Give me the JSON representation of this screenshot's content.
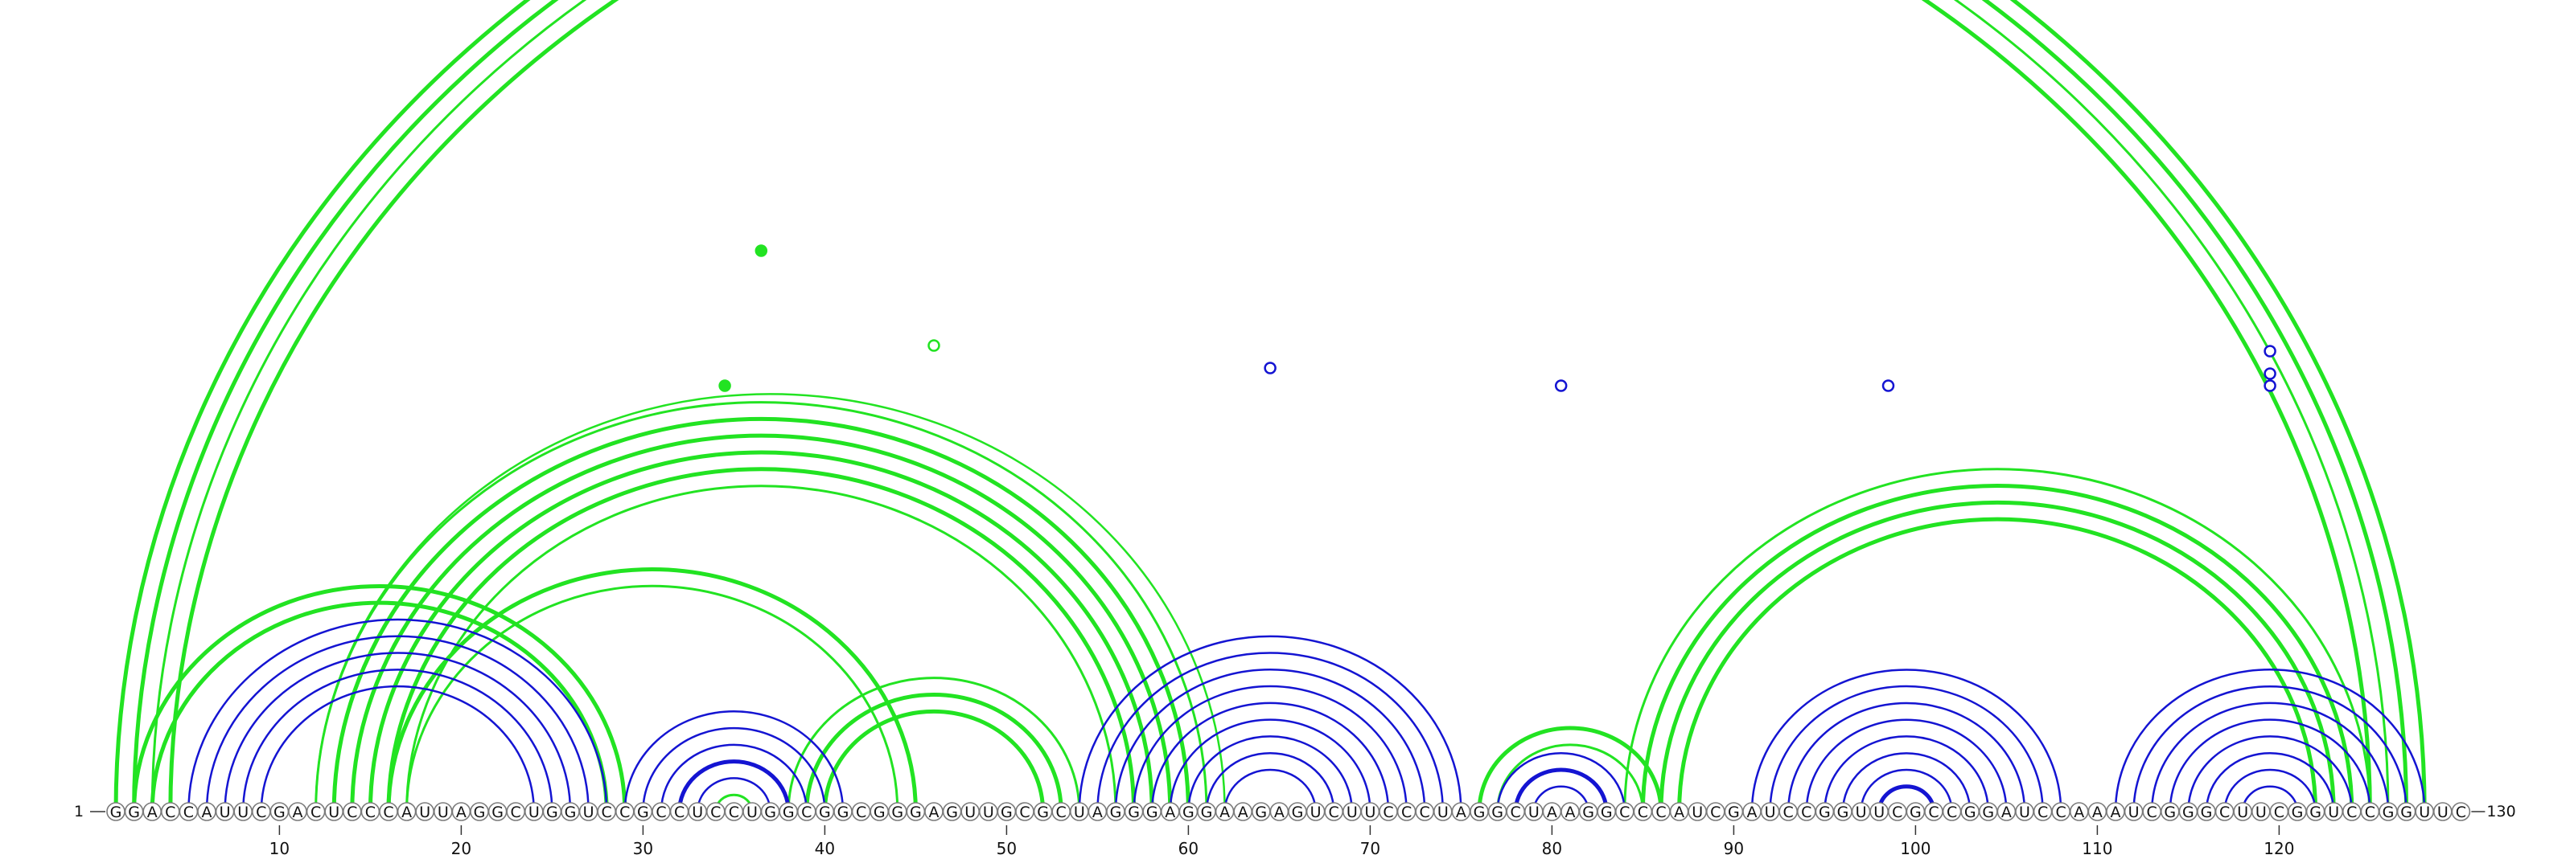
{
  "sequence": "GGACCAUUCGACUCCCAUUAGGCUGGUCCGCCUCCUGGCGGCGGGAGUUGCGCUAGGGAGGAAGAGUCUUCCCUAGGCUAAGGCCCAUCGAUCCGGUUCGCCGGAUCCAAAUCGGGCUUCGGUCCGGUUC",
  "start_label": "1",
  "end_label": "130",
  "colors": {
    "green": "#22e322",
    "blue": "#1414d2"
  },
  "ticks": [
    {
      "pos": 10,
      "label": "10"
    },
    {
      "pos": 20,
      "label": "20"
    },
    {
      "pos": 30,
      "label": "30"
    },
    {
      "pos": 40,
      "label": "40"
    },
    {
      "pos": 50,
      "label": "50"
    },
    {
      "pos": 60,
      "label": "60"
    },
    {
      "pos": 70,
      "label": "70"
    },
    {
      "pos": 80,
      "label": "80"
    },
    {
      "pos": 90,
      "label": "90"
    },
    {
      "pos": 100,
      "label": "100"
    },
    {
      "pos": 110,
      "label": "110"
    },
    {
      "pos": 120,
      "label": "120"
    }
  ],
  "arcs": {
    "green": [
      {
        "i": 1,
        "j": 128,
        "w": 5
      },
      {
        "i": 2,
        "j": 127,
        "w": 5
      },
      {
        "i": 3,
        "j": 126,
        "w": 3
      },
      {
        "i": 4,
        "j": 125,
        "w": 5
      },
      {
        "i": 2,
        "j": 29,
        "w": 5
      },
      {
        "i": 3,
        "j": 28,
        "w": 5
      },
      {
        "i": 13,
        "j": 60,
        "w": 5
      },
      {
        "i": 14,
        "j": 59,
        "w": 5
      },
      {
        "i": 15,
        "j": 58,
        "w": 5
      },
      {
        "i": 16,
        "j": 57,
        "w": 5
      },
      {
        "i": 17,
        "j": 56,
        "w": 3
      },
      {
        "i": 12,
        "j": 61,
        "w": 3
      },
      {
        "i": 12,
        "j": 62,
        "w": 2.5
      },
      {
        "i": 16,
        "j": 45,
        "w": 5
      },
      {
        "i": 17,
        "j": 44,
        "w": 3
      },
      {
        "i": 38,
        "j": 54,
        "w": 3
      },
      {
        "i": 39,
        "j": 53,
        "w": 5
      },
      {
        "i": 40,
        "j": 52,
        "w": 5
      },
      {
        "i": 76,
        "j": 86,
        "w": 5
      },
      {
        "i": 77,
        "j": 85,
        "w": 3
      },
      {
        "i": 84,
        "j": 125,
        "w": 3
      },
      {
        "i": 85,
        "j": 124,
        "w": 5
      },
      {
        "i": 86,
        "j": 123,
        "w": 5
      },
      {
        "i": 87,
        "j": 122,
        "w": 5
      },
      {
        "i": 34,
        "j": 36,
        "w": 3
      }
    ],
    "blue": [
      {
        "i": 5,
        "j": 28,
        "w": 2.5
      },
      {
        "i": 6,
        "j": 27,
        "w": 2.5
      },
      {
        "i": 7,
        "j": 26,
        "w": 2.5
      },
      {
        "i": 8,
        "j": 25,
        "w": 2.5
      },
      {
        "i": 9,
        "j": 24,
        "w": 2.5
      },
      {
        "i": 29,
        "j": 41,
        "w": 2.5
      },
      {
        "i": 30,
        "j": 40,
        "w": 2.5
      },
      {
        "i": 31,
        "j": 39,
        "w": 2.5
      },
      {
        "i": 32,
        "j": 38,
        "w": 5
      },
      {
        "i": 33,
        "j": 37,
        "w": 2.5
      },
      {
        "i": 54,
        "j": 75,
        "w": 2.5
      },
      {
        "i": 55,
        "j": 74,
        "w": 2.5
      },
      {
        "i": 56,
        "j": 73,
        "w": 2.5
      },
      {
        "i": 57,
        "j": 72,
        "w": 2.5
      },
      {
        "i": 58,
        "j": 71,
        "w": 2.5
      },
      {
        "i": 59,
        "j": 70,
        "w": 2.5
      },
      {
        "i": 60,
        "j": 69,
        "w": 2.5
      },
      {
        "i": 61,
        "j": 68,
        "w": 2.5
      },
      {
        "i": 62,
        "j": 67,
        "w": 2.5
      },
      {
        "i": 77,
        "j": 84,
        "w": 2.5
      },
      {
        "i": 78,
        "j": 83,
        "w": 5
      },
      {
        "i": 79,
        "j": 82,
        "w": 2.5
      },
      {
        "i": 91,
        "j": 108,
        "w": 2.5
      },
      {
        "i": 92,
        "j": 107,
        "w": 2.5
      },
      {
        "i": 93,
        "j": 106,
        "w": 2.5
      },
      {
        "i": 94,
        "j": 105,
        "w": 2.5
      },
      {
        "i": 95,
        "j": 104,
        "w": 2.5
      },
      {
        "i": 96,
        "j": 103,
        "w": 2.5
      },
      {
        "i": 97,
        "j": 102,
        "w": 2.5
      },
      {
        "i": 98,
        "j": 101,
        "w": 5
      },
      {
        "i": 111,
        "j": 128,
        "w": 2.5
      },
      {
        "i": 112,
        "j": 127,
        "w": 2.5
      },
      {
        "i": 113,
        "j": 126,
        "w": 2.5
      },
      {
        "i": 114,
        "j": 125,
        "w": 2.5
      },
      {
        "i": 115,
        "j": 124,
        "w": 2.5
      },
      {
        "i": 116,
        "j": 123,
        "w": 2.5
      },
      {
        "i": 117,
        "j": 122,
        "w": 2.5
      },
      {
        "i": 118,
        "j": 121,
        "w": 2.5
      }
    ]
  },
  "markers": [
    {
      "pos": 36.5,
      "level": 312,
      "color": "green",
      "filled": true
    },
    {
      "pos": 46,
      "level": 430,
      "color": "green",
      "filled": false
    },
    {
      "pos": 34.5,
      "level": 480,
      "color": "green",
      "filled": true
    },
    {
      "pos": 64.5,
      "level": 458,
      "color": "blue",
      "filled": false
    },
    {
      "pos": 80.5,
      "level": 480,
      "color": "blue",
      "filled": false
    },
    {
      "pos": 98.5,
      "level": 480,
      "color": "blue",
      "filled": false
    },
    {
      "pos": 119.5,
      "level": 437,
      "color": "blue",
      "filled": false
    },
    {
      "pos": 119.5,
      "level": 465,
      "color": "blue",
      "filled": false
    },
    {
      "pos": 119.5,
      "level": 480,
      "color": "blue",
      "filled": false
    }
  ]
}
